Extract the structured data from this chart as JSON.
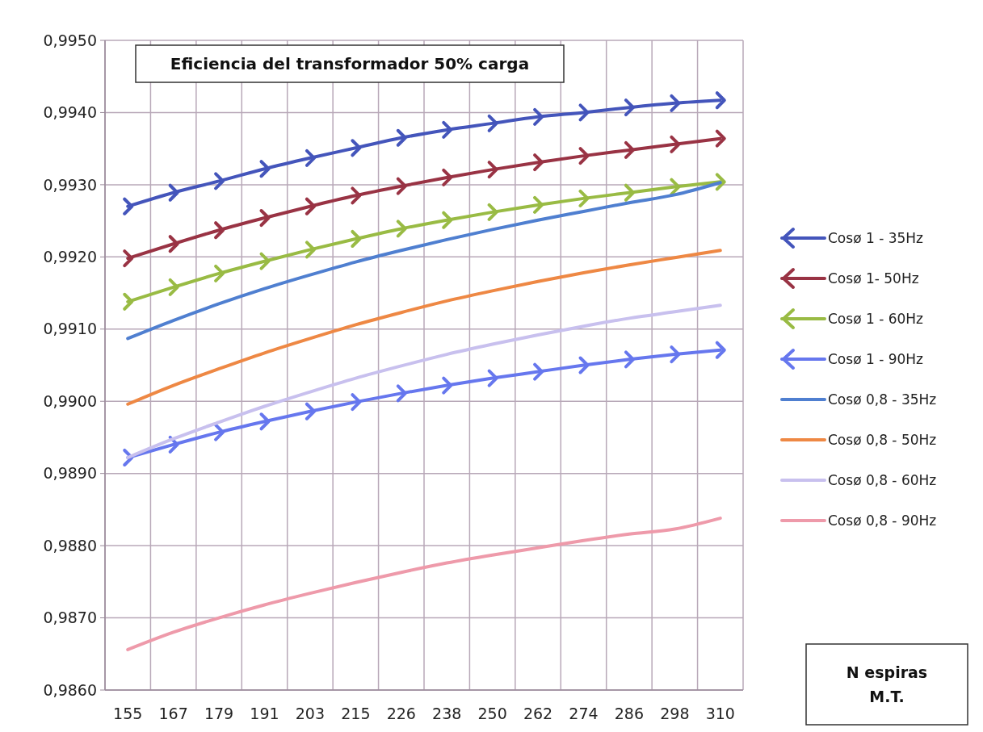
{
  "chart_data": {
    "type": "line",
    "title": "Eficiencia del transformador 50% carga",
    "annotations": [
      "N espiras\nM.T."
    ],
    "categories": [
      "155",
      "167",
      "179",
      "191",
      "203",
      "215",
      "226",
      "238",
      "250",
      "262",
      "274",
      "286",
      "298",
      "310"
    ],
    "ylim": [
      0.986,
      0.995
    ],
    "yticks": [
      {
        "value": 0.986,
        "label": "0,9860"
      },
      {
        "value": 0.987,
        "label": "0,9870"
      },
      {
        "value": 0.988,
        "label": "0,9880"
      },
      {
        "value": 0.989,
        "label": "0,9890"
      },
      {
        "value": 0.99,
        "label": "0,9900"
      },
      {
        "value": 0.991,
        "label": "0,9910"
      },
      {
        "value": 0.992,
        "label": "0,9920"
      },
      {
        "value": 0.993,
        "label": "0,9930"
      },
      {
        "value": 0.994,
        "label": "0,9940"
      },
      {
        "value": 0.995,
        "label": "0,9950"
      }
    ],
    "grid": true,
    "legend": "right",
    "series": [
      {
        "name": "Cosø 1 - 35Hz",
        "color": "#4455bb",
        "marker": "cross",
        "values": [
          0.9927,
          0.99289,
          0.99305,
          0.99322,
          0.99337,
          0.99351,
          0.99365,
          0.99376,
          0.99385,
          0.99394,
          0.994,
          0.99407,
          0.99413,
          0.99417
        ]
      },
      {
        "name": "Cosø 1- 50Hz",
        "color": "#993344",
        "marker": "cross",
        "values": [
          0.99198,
          0.99218,
          0.99237,
          0.99254,
          0.9927,
          0.99285,
          0.99298,
          0.9931,
          0.99321,
          0.99331,
          0.9934,
          0.99348,
          0.99356,
          0.99364
        ]
      },
      {
        "name": "Cosø 1 - 60Hz",
        "color": "#99bb44",
        "marker": "cross",
        "values": [
          0.99138,
          0.99158,
          0.99177,
          0.99194,
          0.9921,
          0.99225,
          0.99239,
          0.99251,
          0.99262,
          0.99272,
          0.99281,
          0.99289,
          0.99297,
          0.99304
        ]
      },
      {
        "name": "Cosø 1 - 90Hz",
        "color": "#6677ee",
        "marker": "cross",
        "values": [
          0.98922,
          0.9894,
          0.98957,
          0.98972,
          0.98986,
          0.98999,
          0.99011,
          0.99022,
          0.99032,
          0.99041,
          0.9905,
          0.99058,
          0.99065,
          0.99071
        ]
      },
      {
        "name": "Cosø 0,8 - 35Hz",
        "color": "#4f7fd0",
        "marker": "none",
        "values": [
          0.99087,
          0.99112,
          0.99135,
          0.99156,
          0.99175,
          0.99193,
          0.99209,
          0.99224,
          0.99238,
          0.99251,
          0.99263,
          0.99275,
          0.99286,
          0.99303
        ]
      },
      {
        "name": "Cosø 0,8 - 50Hz",
        "color": "#ee8844",
        "marker": "none",
        "values": [
          0.98996,
          0.99022,
          0.99045,
          0.99067,
          0.99087,
          0.99106,
          0.99123,
          0.99139,
          0.99153,
          0.99166,
          0.99178,
          0.99189,
          0.99199,
          0.99209
        ]
      },
      {
        "name": "Cosø 0,8 - 60Hz",
        "color": "#c8c0ee",
        "marker": "none",
        "values": [
          0.98922,
          0.98948,
          0.98971,
          0.98993,
          0.99013,
          0.99032,
          0.99049,
          0.99065,
          0.99079,
          0.99092,
          0.99104,
          0.99115,
          0.99124,
          0.99133
        ]
      },
      {
        "name": "Cosø 0,8 - 90Hz",
        "color": "#ee9aaa",
        "marker": "none",
        "values": [
          0.98656,
          0.9868,
          0.987,
          0.98718,
          0.98734,
          0.98749,
          0.98763,
          0.98776,
          0.98787,
          0.98797,
          0.98807,
          0.98816,
          0.98823,
          0.98838
        ]
      }
    ]
  }
}
